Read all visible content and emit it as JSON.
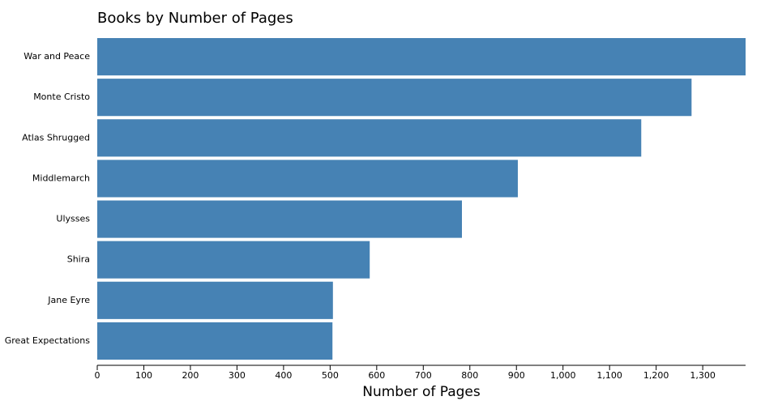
{
  "chart_data": {
    "type": "bar",
    "orientation": "horizontal",
    "title": "Books by Number of Pages",
    "x_label": "Number of Pages",
    "categories": [
      "War and Peace",
      "Monte Cristo",
      "Atlas Shrugged",
      "Middlemarch",
      "Ulysses",
      "Shira",
      "Jane Eyre",
      "Great Expectations"
    ],
    "values": [
      1392,
      1276,
      1168,
      903,
      783,
      585,
      506,
      505
    ],
    "color": "#4682b4",
    "xlim": [
      0,
      1392
    ],
    "xticks": [
      0,
      100,
      200,
      300,
      400,
      500,
      600,
      700,
      800,
      900,
      {
        "value": 1000,
        "label": "1,000"
      },
      {
        "value": 1100,
        "label": "1,100"
      },
      {
        "value": 1200,
        "label": "1,200"
      },
      {
        "value": 1300,
        "label": "1,300"
      }
    ]
  }
}
